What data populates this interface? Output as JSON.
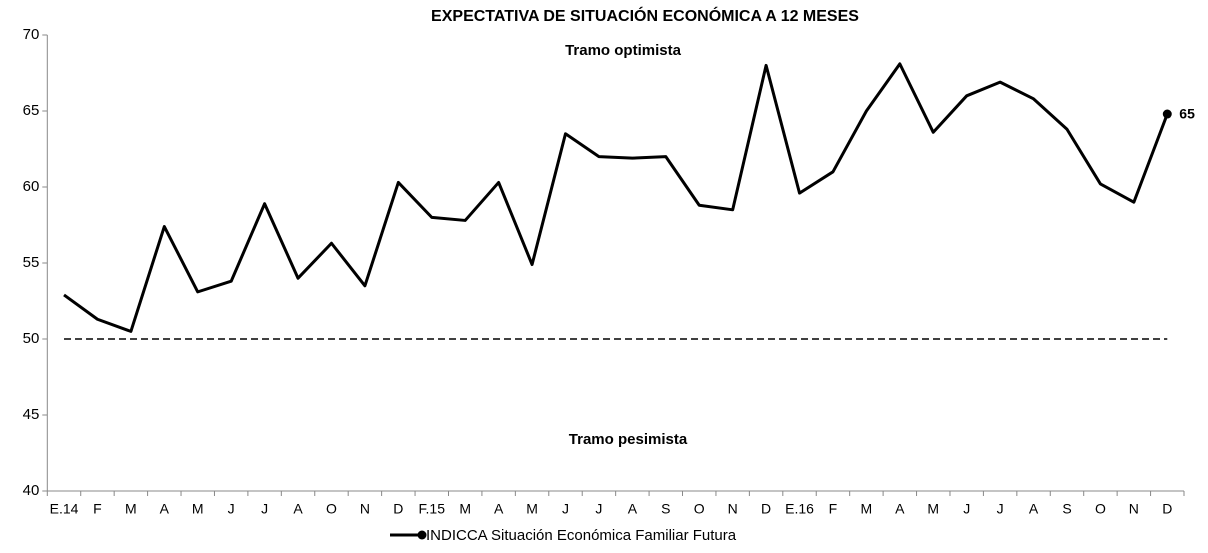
{
  "chart_data": {
    "type": "line",
    "title": "EXPECTATIVA DE SITUACIÓN ECONÓMICA A 12 MESES",
    "annotations": [
      "Tramo optimista",
      "Tramo pesimista"
    ],
    "categories": [
      "E.14",
      "F",
      "M",
      "A",
      "M",
      "J",
      "J",
      "A",
      "O",
      "N",
      "D",
      "F.15",
      "M",
      "A",
      "M",
      "J",
      "J",
      "A",
      "S",
      "O",
      "N",
      "D",
      "E.16",
      "F",
      "M",
      "A",
      "M",
      "J",
      "J",
      "A",
      "S",
      "O",
      "N",
      "D"
    ],
    "series": [
      {
        "name": "INDICCA Situación Económica Familiar Futura",
        "color": "#000000",
        "values": [
          52.9,
          51.3,
          50.5,
          57.4,
          53.1,
          53.8,
          58.9,
          54.0,
          56.3,
          53.5,
          60.3,
          58.0,
          57.8,
          60.3,
          54.9,
          63.5,
          62.0,
          61.9,
          62.0,
          58.8,
          58.5,
          68.0,
          59.6,
          61.0,
          65.0,
          68.1,
          63.6,
          66.0,
          66.9,
          65.8,
          63.8,
          60.2,
          59.0,
          64.8
        ],
        "value_labels": [
          null,
          null,
          null,
          null,
          null,
          null,
          null,
          null,
          null,
          null,
          null,
          null,
          null,
          null,
          null,
          null,
          null,
          null,
          null,
          null,
          null,
          null,
          null,
          null,
          null,
          null,
          null,
          null,
          null,
          null,
          null,
          null,
          null,
          "65"
        ]
      }
    ],
    "reference_line": 50,
    "ylim": [
      40,
      70
    ],
    "yticks": [
      40,
      45,
      50,
      55,
      60,
      65,
      70
    ],
    "legend": "bottom"
  }
}
